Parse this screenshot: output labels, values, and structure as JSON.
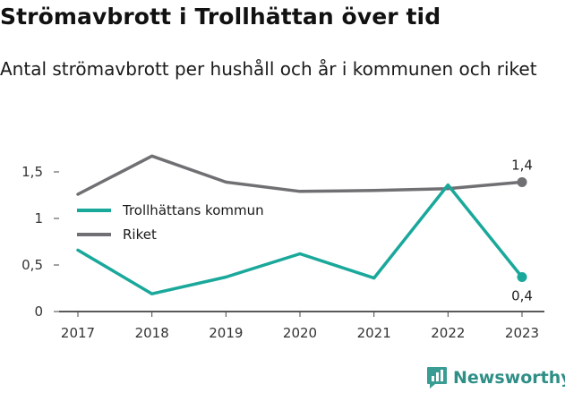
{
  "title": "Strömavbrott i Trollhättan över tid",
  "subtitle": "Antal strömavbrott per hushåll och år i kommunen och riket",
  "brand": {
    "name": "Newsworthy",
    "icon": "newsworthy-logo-icon"
  },
  "chart_data": {
    "type": "line",
    "x": [
      "2017",
      "2018",
      "2019",
      "2020",
      "2021",
      "2022",
      "2023"
    ],
    "ylim": [
      0,
      1.5
    ],
    "yticks": [
      {
        "value": 0,
        "label": "0"
      },
      {
        "value": 0.5,
        "label": "0,5"
      },
      {
        "value": 1,
        "label": "1"
      },
      {
        "value": 1.5,
        "label": "1,5"
      }
    ],
    "grid": false,
    "legend_position": "left",
    "series": [
      {
        "name": "Trollhättans kommun",
        "color": "#1aa89b",
        "values": [
          0.66,
          0.19,
          0.37,
          0.62,
          0.36,
          1.36,
          0.37
        ],
        "end_label": "0,4"
      },
      {
        "name": "Riket",
        "color": "#707074",
        "values": [
          1.26,
          1.67,
          1.39,
          1.29,
          1.3,
          1.32,
          1.39
        ],
        "end_label": "1,4"
      }
    ]
  }
}
